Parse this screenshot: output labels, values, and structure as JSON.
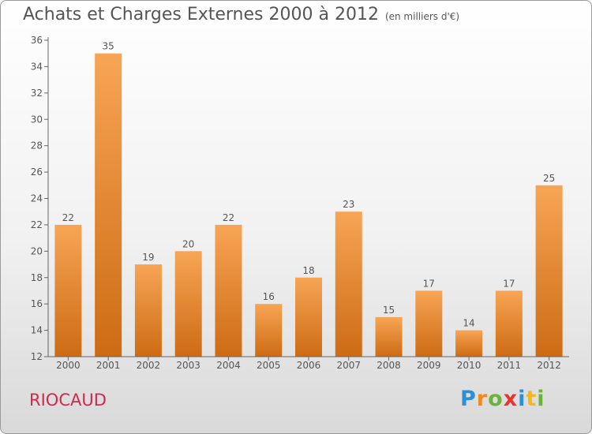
{
  "title": "Achats et Charges Externes 2000 à 2012",
  "unit": "(en milliers d'€)",
  "footer": {
    "town": "RIOCAUD",
    "logo": [
      "P",
      "r",
      "o",
      "x",
      "i",
      "t",
      "i"
    ]
  },
  "colors": {
    "bar_top": "#f7a555",
    "bar_bottom": "#cd6b14",
    "text": "#555555",
    "town": "#d2284f",
    "logo": [
      "#2e8fd6",
      "#f08a1c",
      "#6bb33a",
      "#e8342c",
      "#2e8fd6",
      "#f5b81c",
      "#6bb33a"
    ]
  },
  "chart_data": {
    "type": "bar",
    "categories": [
      "2000",
      "2001",
      "2002",
      "2003",
      "2004",
      "2005",
      "2006",
      "2007",
      "2008",
      "2009",
      "2010",
      "2011",
      "2012"
    ],
    "values": [
      22,
      35,
      19,
      20,
      22,
      16,
      18,
      23,
      15,
      17,
      14,
      17,
      25
    ],
    "ylim": [
      12,
      36
    ],
    "yticks": [
      12,
      14,
      16,
      18,
      20,
      22,
      24,
      26,
      28,
      30,
      32,
      34,
      36
    ],
    "grid": false,
    "legend": "none"
  }
}
